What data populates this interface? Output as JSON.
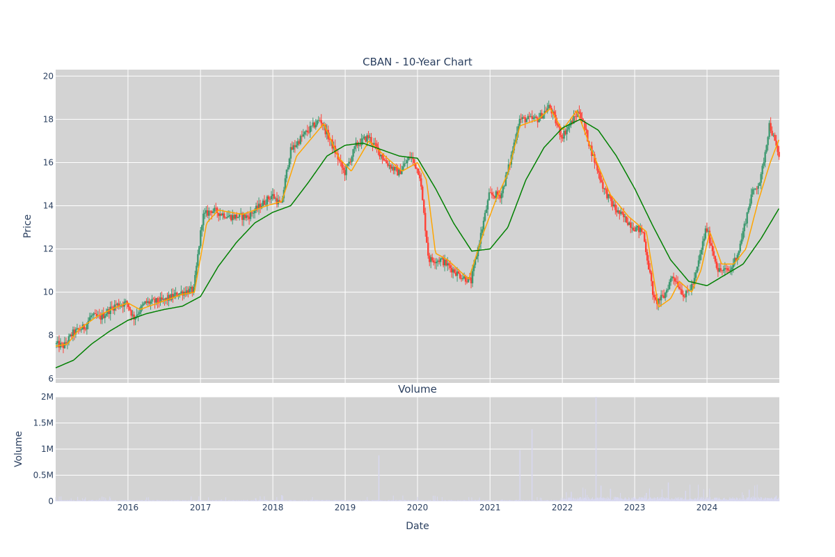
{
  "chart_data": [
    {
      "type": "candlestick",
      "title": "CBAN - 10-Year Chart",
      "ylabel": "Price",
      "xlim": [
        "2015-01-01",
        "2024-12-31"
      ],
      "ylim": [
        5.8,
        20.3
      ],
      "y_ticks": [
        6,
        8,
        10,
        12,
        14,
        16,
        18,
        20
      ],
      "grid": true,
      "colors": {
        "background": "#d3d3d3",
        "grid": "#ffffff",
        "up": "#3d9970",
        "down": "#ff4136",
        "ma_short": "#ffa500",
        "ma_long": "#008000"
      },
      "price_anchors": [
        [
          "2015-01-01",
          7.6
        ],
        [
          "2015-02-15",
          7.5
        ],
        [
          "2015-04-01",
          8.1
        ],
        [
          "2015-06-01",
          8.4
        ],
        [
          "2015-07-01",
          8.9
        ],
        [
          "2015-08-15",
          8.8
        ],
        [
          "2015-11-01",
          9.4
        ],
        [
          "2016-01-01",
          9.5
        ],
        [
          "2016-02-01",
          8.8
        ],
        [
          "2016-04-01",
          9.5
        ],
        [
          "2016-07-01",
          9.6
        ],
        [
          "2016-10-01",
          10.0
        ],
        [
          "2016-12-01",
          10.1
        ],
        [
          "2017-01-15",
          13.5
        ],
        [
          "2017-03-01",
          13.8
        ],
        [
          "2017-06-01",
          13.5
        ],
        [
          "2017-09-01",
          13.5
        ],
        [
          "2018-01-01",
          14.5
        ],
        [
          "2018-02-15",
          14.0
        ],
        [
          "2018-04-01",
          16.5
        ],
        [
          "2018-06-01",
          17.2
        ],
        [
          "2018-09-01",
          18.0
        ],
        [
          "2018-11-15",
          16.5
        ],
        [
          "2019-01-01",
          15.5
        ],
        [
          "2019-03-01",
          16.8
        ],
        [
          "2019-05-01",
          17.2
        ],
        [
          "2019-08-01",
          16.0
        ],
        [
          "2019-10-01",
          15.5
        ],
        [
          "2019-12-01",
          16.3
        ],
        [
          "2020-01-15",
          15.5
        ],
        [
          "2020-03-01",
          11.5
        ],
        [
          "2020-05-01",
          11.5
        ],
        [
          "2020-08-01",
          10.8
        ],
        [
          "2020-10-01",
          10.5
        ],
        [
          "2020-11-15",
          12.5
        ],
        [
          "2021-01-01",
          14.5
        ],
        [
          "2021-03-01",
          14.5
        ],
        [
          "2021-04-15",
          16.0
        ],
        [
          "2021-06-01",
          18.0
        ],
        [
          "2021-09-01",
          18.0
        ],
        [
          "2021-11-01",
          18.6
        ],
        [
          "2022-01-01",
          17.2
        ],
        [
          "2022-04-01",
          18.4
        ],
        [
          "2022-06-01",
          16.5
        ],
        [
          "2022-08-01",
          14.8
        ],
        [
          "2022-10-01",
          13.8
        ],
        [
          "2023-01-01",
          13.0
        ],
        [
          "2023-02-15",
          12.8
        ],
        [
          "2023-04-15",
          9.5
        ],
        [
          "2023-06-01",
          9.8
        ],
        [
          "2023-07-15",
          10.8
        ],
        [
          "2023-09-15",
          9.8
        ],
        [
          "2023-11-01",
          10.5
        ],
        [
          "2024-01-01",
          13.0
        ],
        [
          "2024-03-01",
          11.0
        ],
        [
          "2024-05-01",
          11.0
        ],
        [
          "2024-06-15",
          12.0
        ],
        [
          "2024-08-15",
          14.5
        ],
        [
          "2024-10-01",
          15.2
        ],
        [
          "2024-11-15",
          17.8
        ],
        [
          "2024-12-31",
          16.3
        ]
      ],
      "ma_short_anchors": [
        [
          "2015-01-01",
          7.5
        ],
        [
          "2015-03-01",
          7.6
        ],
        [
          "2015-05-01",
          8.3
        ],
        [
          "2015-08-01",
          8.9
        ],
        [
          "2015-11-01",
          9.3
        ],
        [
          "2016-01-01",
          9.5
        ],
        [
          "2016-03-01",
          9.2
        ],
        [
          "2016-06-01",
          9.5
        ],
        [
          "2016-10-01",
          9.9
        ],
        [
          "2016-12-01",
          10.0
        ],
        [
          "2017-02-01",
          13.2
        ],
        [
          "2017-04-01",
          13.8
        ],
        [
          "2017-08-01",
          13.6
        ],
        [
          "2017-12-01",
          14.0
        ],
        [
          "2018-02-15",
          14.2
        ],
        [
          "2018-05-01",
          16.3
        ],
        [
          "2018-09-15",
          17.8
        ],
        [
          "2018-12-01",
          16.2
        ],
        [
          "2019-02-01",
          15.6
        ],
        [
          "2019-05-01",
          17.0
        ],
        [
          "2019-08-01",
          16.2
        ],
        [
          "2019-10-15",
          15.6
        ],
        [
          "2020-01-01",
          16.0
        ],
        [
          "2020-02-15",
          15.2
        ],
        [
          "2020-04-01",
          11.8
        ],
        [
          "2020-06-01",
          11.5
        ],
        [
          "2020-09-15",
          10.6
        ],
        [
          "2020-12-01",
          12.8
        ],
        [
          "2021-02-01",
          14.3
        ],
        [
          "2021-04-01",
          15.5
        ],
        [
          "2021-06-01",
          17.7
        ],
        [
          "2021-09-01",
          18.0
        ],
        [
          "2021-11-01",
          18.5
        ],
        [
          "2022-01-01",
          17.5
        ],
        [
          "2022-03-15",
          18.4
        ],
        [
          "2022-06-01",
          16.5
        ],
        [
          "2022-09-01",
          14.5
        ],
        [
          "2022-12-01",
          13.5
        ],
        [
          "2023-03-01",
          12.8
        ],
        [
          "2023-05-01",
          9.3
        ],
        [
          "2023-07-01",
          9.7
        ],
        [
          "2023-08-15",
          10.5
        ],
        [
          "2023-10-15",
          10.0
        ],
        [
          "2023-12-01",
          11.0
        ],
        [
          "2024-01-15",
          12.8
        ],
        [
          "2024-03-15",
          11.3
        ],
        [
          "2024-05-15",
          11.3
        ],
        [
          "2024-07-15",
          12.0
        ],
        [
          "2024-09-15",
          14.2
        ],
        [
          "2024-11-15",
          16.0
        ],
        [
          "2024-12-31",
          17.1
        ]
      ],
      "ma_long_anchors": [
        [
          "2015-01-01",
          6.5
        ],
        [
          "2015-04-01",
          6.85
        ],
        [
          "2015-07-01",
          7.6
        ],
        [
          "2015-10-01",
          8.2
        ],
        [
          "2016-01-01",
          8.7
        ],
        [
          "2016-04-01",
          9.0
        ],
        [
          "2016-07-01",
          9.2
        ],
        [
          "2016-10-01",
          9.35
        ],
        [
          "2017-01-01",
          9.8
        ],
        [
          "2017-04-01",
          11.2
        ],
        [
          "2017-07-01",
          12.3
        ],
        [
          "2017-10-01",
          13.2
        ],
        [
          "2018-01-01",
          13.7
        ],
        [
          "2018-04-01",
          14.0
        ],
        [
          "2018-07-01",
          15.1
        ],
        [
          "2018-10-01",
          16.3
        ],
        [
          "2019-01-01",
          16.8
        ],
        [
          "2019-04-01",
          16.9
        ],
        [
          "2019-07-01",
          16.6
        ],
        [
          "2019-10-01",
          16.3
        ],
        [
          "2020-01-01",
          16.2
        ],
        [
          "2020-04-01",
          14.8
        ],
        [
          "2020-07-01",
          13.2
        ],
        [
          "2020-10-01",
          11.9
        ],
        [
          "2021-01-01",
          12.0
        ],
        [
          "2021-04-01",
          13.0
        ],
        [
          "2021-07-01",
          15.2
        ],
        [
          "2021-10-01",
          16.7
        ],
        [
          "2022-01-01",
          17.6
        ],
        [
          "2022-04-01",
          18.0
        ],
        [
          "2022-07-01",
          17.5
        ],
        [
          "2022-10-01",
          16.3
        ],
        [
          "2023-01-01",
          14.8
        ],
        [
          "2023-04-01",
          13.1
        ],
        [
          "2023-07-01",
          11.5
        ],
        [
          "2023-10-01",
          10.5
        ],
        [
          "2024-01-01",
          10.3
        ],
        [
          "2024-04-01",
          10.8
        ],
        [
          "2024-07-01",
          11.3
        ],
        [
          "2024-10-01",
          12.5
        ],
        [
          "2024-12-31",
          13.9
        ]
      ]
    },
    {
      "type": "bar",
      "title": "Volume",
      "ylabel": "Volume",
      "xlabel": "Date",
      "ylim": [
        0,
        2000000
      ],
      "y_ticks": [
        0,
        500000,
        1000000,
        1500000,
        2000000
      ],
      "y_tick_labels": [
        "0",
        "0.5M",
        "1M",
        "1.5M",
        "2M"
      ],
      "x_ticks": [
        "2016-01-01",
        "2017-01-01",
        "2018-01-01",
        "2019-01-01",
        "2020-01-01",
        "2021-01-01",
        "2022-01-01",
        "2023-01-01",
        "2024-01-01"
      ],
      "x_tick_labels": [
        "2016",
        "2017",
        "2018",
        "2019",
        "2020",
        "2021",
        "2022",
        "2023",
        "2024"
      ],
      "grid": true,
      "colors": {
        "background": "#d3d3d3",
        "grid": "#ffffff",
        "bar": "#d8d8f0"
      },
      "spikes": [
        [
          "2018-02-15",
          120000
        ],
        [
          "2019-06-20",
          880000
        ],
        [
          "2021-06-01",
          980000
        ],
        [
          "2021-08-01",
          1380000
        ],
        [
          "2022-02-15",
          180000
        ],
        [
          "2022-06-20",
          2000000
        ],
        [
          "2022-07-15",
          300000
        ],
        [
          "2022-09-01",
          240000
        ],
        [
          "2023-03-01",
          160000
        ],
        [
          "2023-06-20",
          360000
        ],
        [
          "2023-09-15",
          200000
        ],
        [
          "2024-08-01",
          220000
        ],
        [
          "2024-12-15",
          110000
        ]
      ]
    }
  ]
}
